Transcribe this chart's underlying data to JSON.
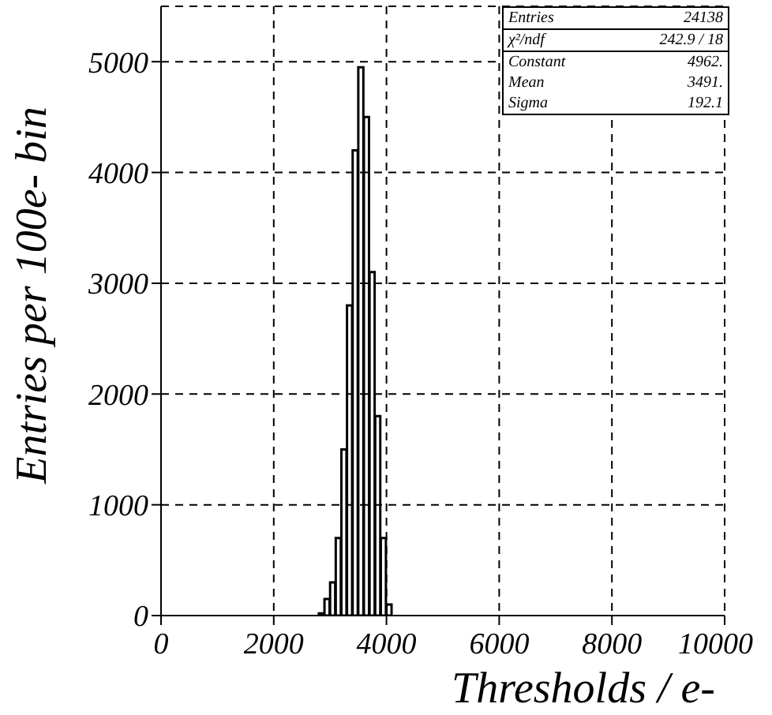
{
  "chart_data": {
    "type": "histogram",
    "xlabel": "Thresholds / e-",
    "ylabel": "Entries per 100e- bin",
    "bins": [
      2800,
      2900,
      3000,
      3100,
      3200,
      3300,
      3400,
      3500,
      3600,
      3700,
      3800,
      3900,
      4000,
      4100
    ],
    "values": [
      20,
      150,
      300,
      700,
      1500,
      2800,
      4200,
      4950,
      4500,
      3100,
      1800,
      700,
      100
    ],
    "color": "#000000",
    "xlim": [
      0,
      10000
    ],
    "xticks": [
      0,
      2000,
      4000,
      6000,
      8000,
      10000
    ],
    "ylim": [
      0,
      5500
    ],
    "yticks": [
      0,
      1000,
      2000,
      3000,
      4000,
      5000
    ],
    "grid": true,
    "annotations": [
      "Entries",
      "24138",
      "χ²/ndf",
      "242.9  /  18",
      "Constant",
      "4962.",
      "Mean",
      "3491.",
      "Sigma",
      "192.1"
    ]
  }
}
